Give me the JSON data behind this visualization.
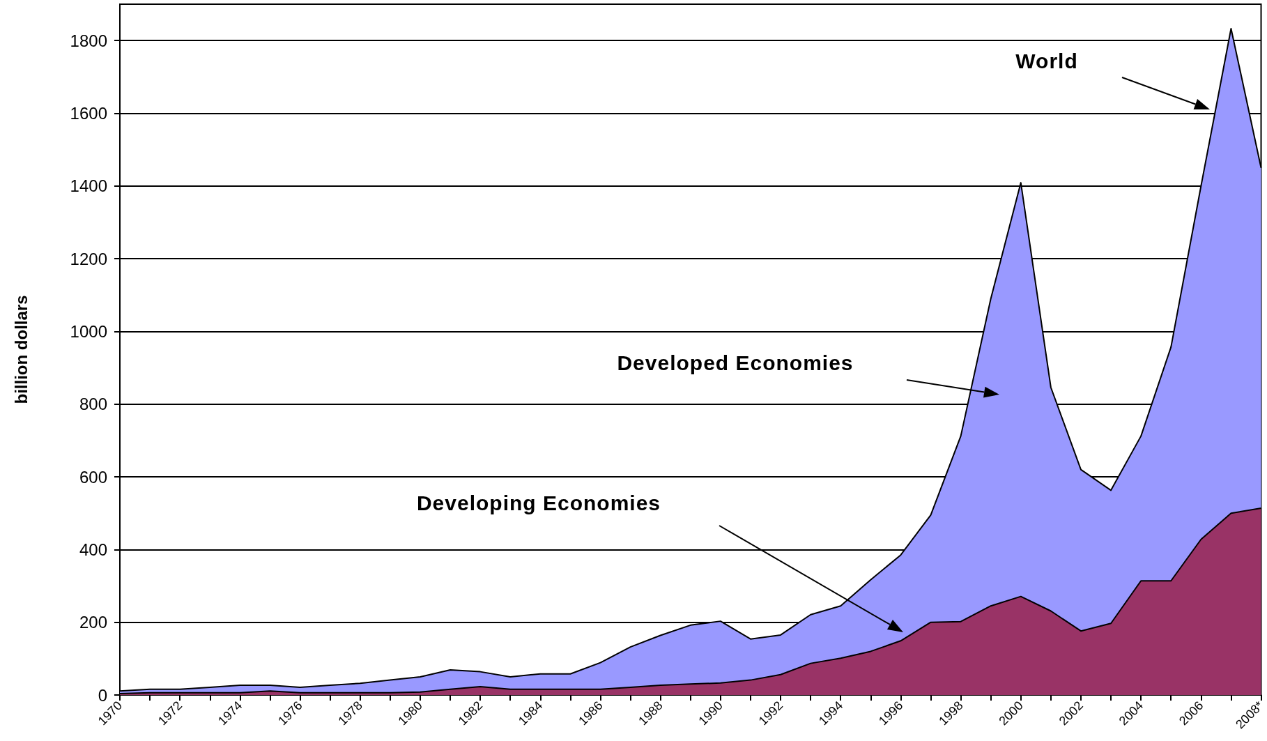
{
  "chart_data": {
    "type": "area",
    "stacked": true,
    "ylabel": "billion dollars",
    "categories": [
      "1970",
      null,
      "1972",
      null,
      "1974",
      null,
      "1976",
      null,
      "1978",
      null,
      "1980",
      null,
      "1982",
      null,
      "1984",
      null,
      "1986",
      null,
      "1988",
      null,
      "1990",
      null,
      "1992",
      null,
      "1994",
      null,
      "1996",
      null,
      "1998",
      null,
      "2000",
      null,
      "2002",
      null,
      "2004",
      null,
      "2006",
      null,
      "2008*"
    ],
    "series": [
      {
        "color": "#993366",
        "values": [
          4,
          6,
          6,
          6,
          6,
          11,
          6,
          6,
          6,
          6,
          8,
          16,
          23,
          16,
          16,
          16,
          16,
          21,
          27,
          30,
          33,
          41,
          56,
          87,
          101,
          120,
          149,
          200,
          202,
          245,
          271,
          231,
          176,
          197,
          314,
          314,
          428,
          500,
          514
        ]
      },
      {
        "color": "#9999ff",
        "values": [
          7,
          10,
          10,
          15,
          21,
          16,
          15,
          21,
          26,
          35,
          42,
          53,
          41,
          34,
          42,
          42,
          73,
          111,
          137,
          162,
          170,
          113,
          109,
          134,
          144,
          197,
          236,
          295,
          510,
          845,
          1138,
          615,
          444,
          366,
          398,
          643,
          972,
          1333,
          936
        ]
      }
    ],
    "annotations": [
      "World",
      "Developed Economies",
      "Developing Economies"
    ],
    "ylim": [
      0,
      1900
    ],
    "yticks": [
      0,
      200,
      400,
      600,
      800,
      1000,
      1200,
      1400,
      1600,
      1800
    ],
    "grid": "y",
    "marker": "none"
  }
}
